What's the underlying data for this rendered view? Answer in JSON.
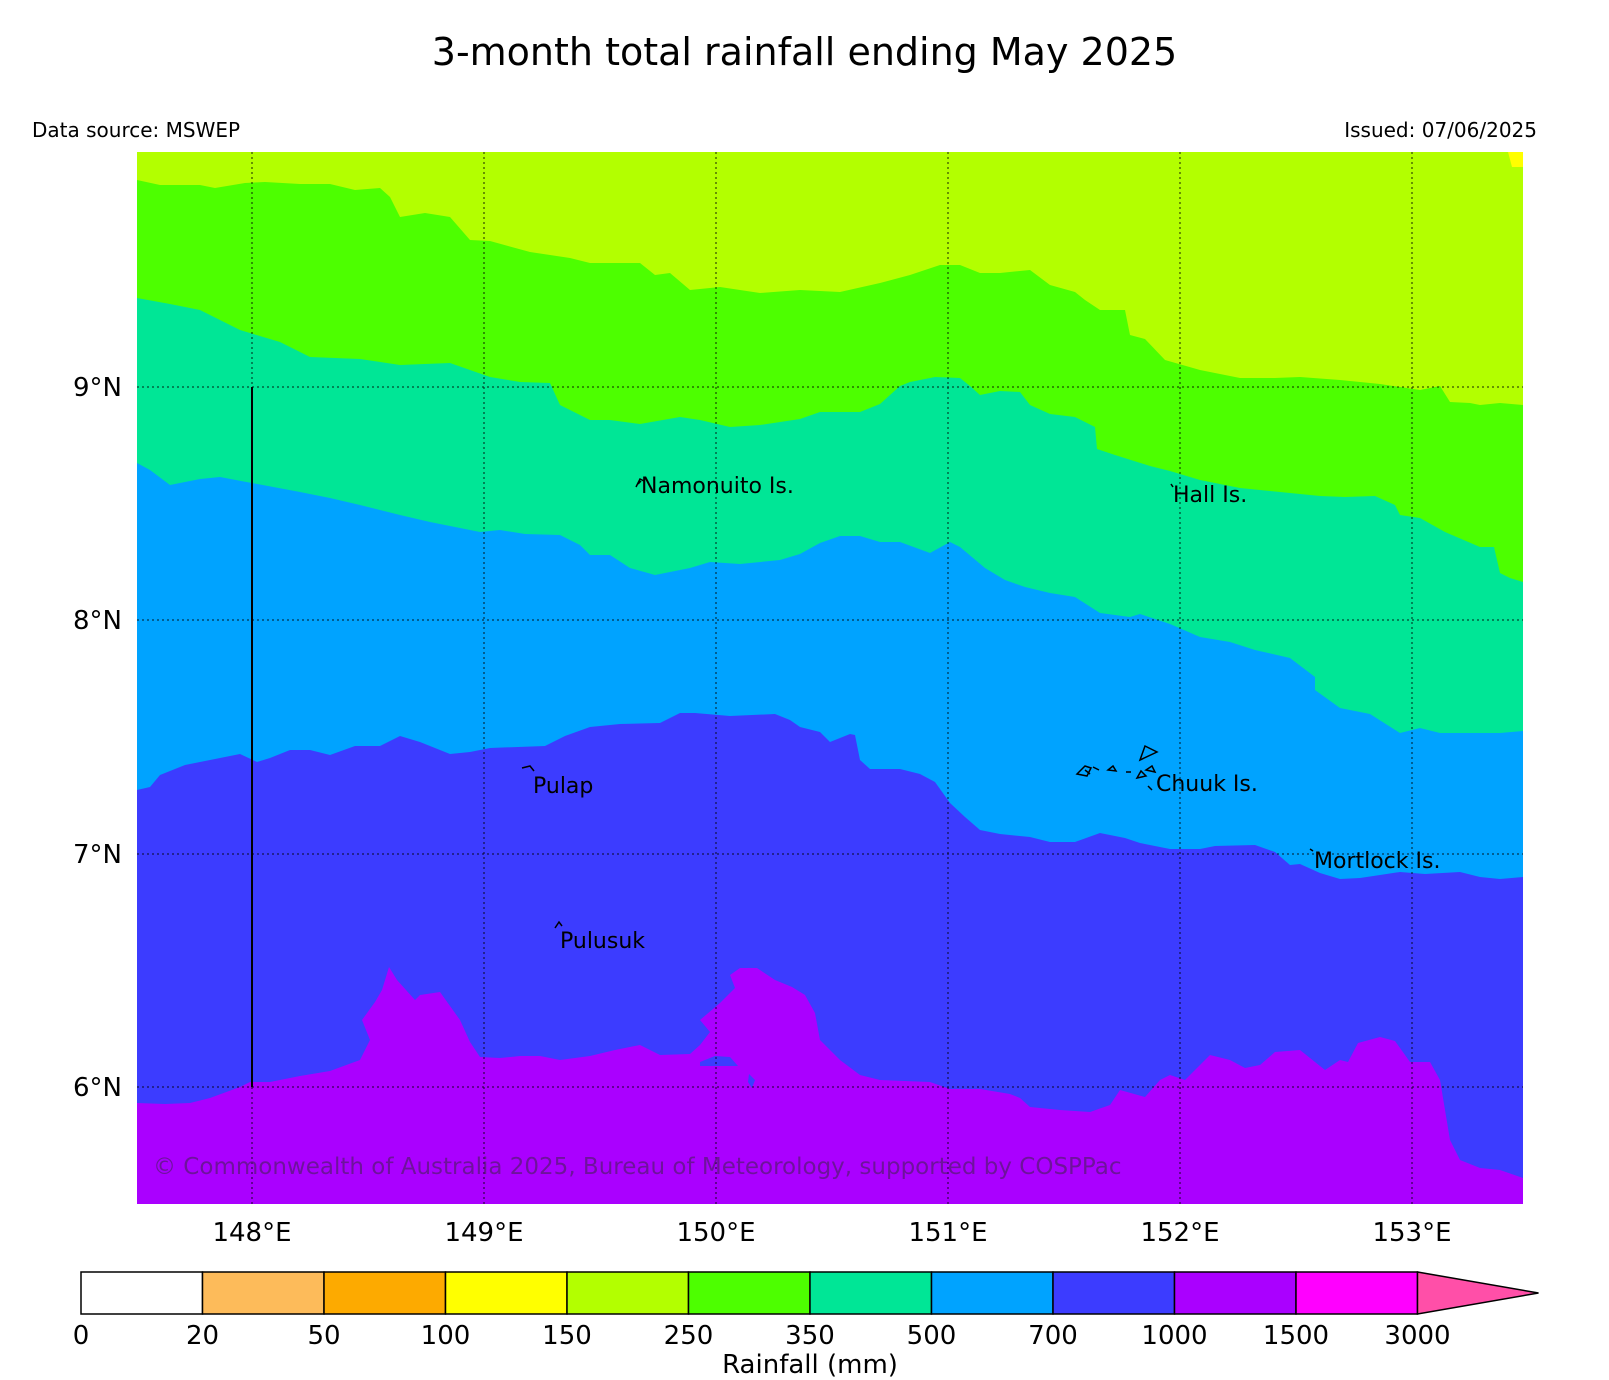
{
  "title": "3-month total rainfall ending May 2025",
  "data_source": "Data source: MSWEP",
  "issued": "Issued: 07/06/2025",
  "copyright": "© Commonwealth of Australia 2025, Bureau of Meteorology, supported by COSPPac",
  "map": {
    "lon_range": [
      147.5,
      153.5
    ],
    "lat_range": [
      5.5,
      10.0
    ],
    "lon_ticks": [
      {
        "value": 148,
        "label": "148°E"
      },
      {
        "value": 149,
        "label": "149°E"
      },
      {
        "value": 150,
        "label": "150°E"
      },
      {
        "value": 151,
        "label": "151°E"
      },
      {
        "value": 152,
        "label": "152°E"
      },
      {
        "value": 153,
        "label": "153°E"
      }
    ],
    "lat_ticks": [
      {
        "value": 9,
        "label": "9°N"
      },
      {
        "value": 8,
        "label": "8°N"
      },
      {
        "value": 7,
        "label": "7°N"
      },
      {
        "value": 6,
        "label": "6°N"
      }
    ],
    "grid": "dotted",
    "places": [
      {
        "name": "Namonuito Is.",
        "lon": 149.65,
        "lat": 8.62
      },
      {
        "name": "Hall Is.",
        "lon": 151.98,
        "lat": 8.58
      },
      {
        "name": "Pulap",
        "lon": 149.18,
        "lat": 7.35
      },
      {
        "name": "Chuuk Is.",
        "lon": 151.85,
        "lat": 7.35
      },
      {
        "name": "Mortlock Is.",
        "lon": 152.58,
        "lat": 7.0
      },
      {
        "name": "Pulusuk",
        "lon": 149.3,
        "lat": 6.68
      }
    ]
  },
  "colorbar": {
    "title": "Rainfall (mm)",
    "tick_labels": [
      "0",
      "20",
      "50",
      "100",
      "150",
      "250",
      "350",
      "500",
      "700",
      "1000",
      "1500",
      "3000"
    ],
    "colors": [
      "#ffffff",
      "#fdbb5a",
      "#fdaa00",
      "#ffff00",
      "#b3ff00",
      "#4dff00",
      "#00e696",
      "#00a3ff",
      "#3c3cff",
      "#aa00ff",
      "#ff00ff"
    ],
    "extend_color": "#ff4fa8"
  },
  "rainfall_classes": {
    "150-250": "#b3ff00",
    "250-350": "#4dff00",
    "350-500": "#00e696",
    "500-700": "#00a3ff",
    "700-1000": "#3c3cff",
    "1000-1500": "#aa00ff",
    "100-150": "#ffff00"
  }
}
